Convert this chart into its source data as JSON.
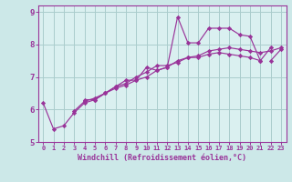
{
  "xlabel": "Windchill (Refroidissement éolien,°C)",
  "background_color": "#cce8e8",
  "grid_color": "#aacccc",
  "line_color": "#993399",
  "axis_bg": "#daf0f0",
  "xlim": [
    -0.5,
    23.5
  ],
  "ylim": [
    5.0,
    9.2
  ],
  "xticks": [
    0,
    1,
    2,
    3,
    4,
    5,
    6,
    7,
    8,
    9,
    10,
    11,
    12,
    13,
    14,
    15,
    16,
    17,
    18,
    19,
    20,
    21,
    22,
    23
  ],
  "yticks": [
    5,
    6,
    7,
    8,
    9
  ],
  "series": [
    [
      6.2,
      5.4,
      5.5,
      5.9,
      6.2,
      6.3,
      6.5,
      6.7,
      6.9,
      6.9,
      7.3,
      7.2,
      7.3,
      8.85,
      8.05,
      8.05,
      8.5,
      8.5,
      8.5,
      8.3,
      8.25,
      7.5,
      7.9,
      null
    ],
    [
      null,
      null,
      null,
      5.95,
      6.25,
      6.35,
      6.5,
      6.7,
      6.8,
      7.0,
      7.15,
      7.35,
      7.35,
      7.45,
      7.6,
      7.6,
      7.7,
      7.75,
      7.7,
      7.65,
      7.6,
      7.5,
      null,
      null
    ],
    [
      null,
      null,
      null,
      null,
      6.3,
      6.3,
      6.5,
      6.65,
      6.75,
      6.9,
      7.0,
      7.2,
      7.3,
      7.5,
      7.6,
      7.65,
      7.8,
      7.85,
      7.9,
      7.85,
      7.8,
      7.75,
      7.8,
      7.9
    ],
    [
      null,
      null,
      null,
      null,
      null,
      null,
      null,
      null,
      null,
      null,
      null,
      null,
      null,
      null,
      null,
      null,
      null,
      null,
      null,
      null,
      null,
      null,
      7.5,
      7.85
    ]
  ]
}
